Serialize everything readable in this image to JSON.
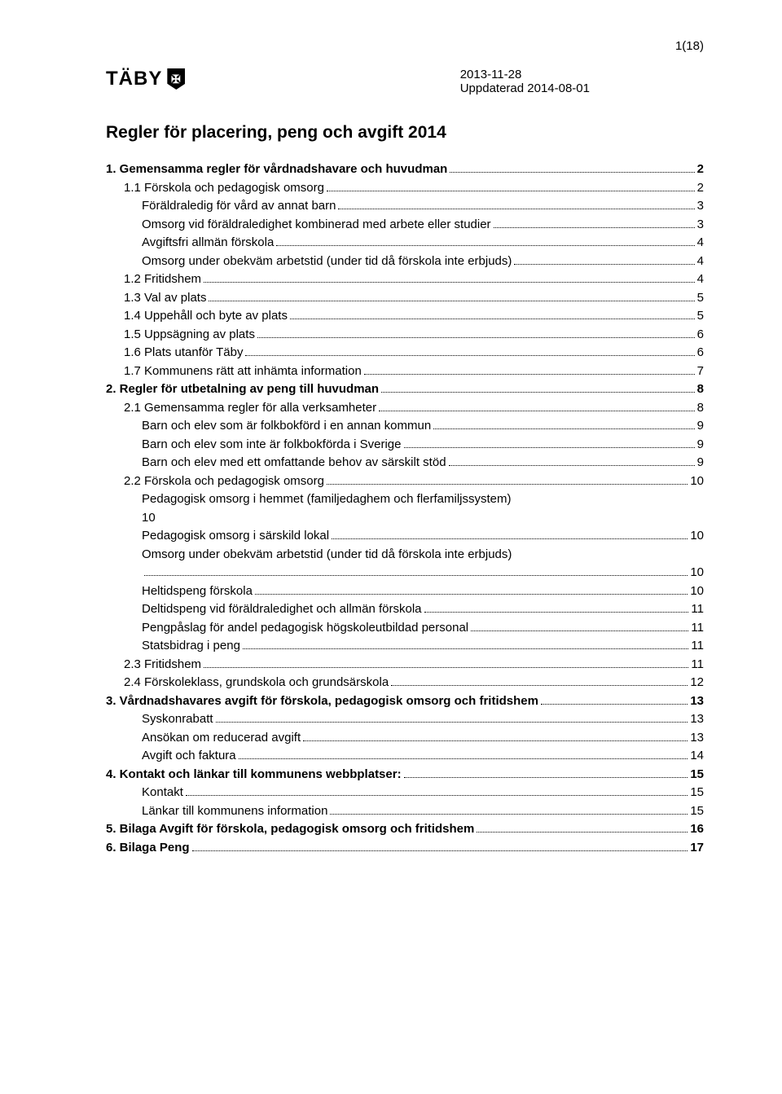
{
  "pageNumber": "1(18)",
  "logoText": "TÄBY",
  "logoGlyph": "✠",
  "date1": "2013-11-28",
  "date2": "Uppdaterad 2014-08-01",
  "title": "Regler för placering, peng och avgift 2014",
  "toc": [
    {
      "level": 0,
      "bold": true,
      "label": "1. Gemensamma regler för vårdnadshavare och huvudman",
      "page": "2"
    },
    {
      "level": 1,
      "bold": false,
      "label": "1.1 Förskola och pedagogisk omsorg",
      "page": "2"
    },
    {
      "level": 2,
      "bold": false,
      "label": "Föräldraledig för vård av annat barn",
      "page": "3"
    },
    {
      "level": 2,
      "bold": false,
      "label": "Omsorg vid föräldraledighet kombinerad med arbete eller studier",
      "page": "3"
    },
    {
      "level": 2,
      "bold": false,
      "label": "Avgiftsfri allmän förskola",
      "page": "4"
    },
    {
      "level": 2,
      "bold": false,
      "label": "Omsorg under obekväm arbetstid (under tid då förskola inte erbjuds)",
      "page": "4"
    },
    {
      "level": 1,
      "bold": false,
      "label": "1.2 Fritidshem",
      "page": "4"
    },
    {
      "level": 1,
      "bold": false,
      "label": "1.3 Val av plats",
      "page": "5"
    },
    {
      "level": 1,
      "bold": false,
      "label": "1.4 Uppehåll och byte av plats",
      "page": "5"
    },
    {
      "level": 1,
      "bold": false,
      "label": "1.5 Uppsägning av plats",
      "page": "6"
    },
    {
      "level": 1,
      "bold": false,
      "label": "1.6 Plats utanför Täby",
      "page": "6"
    },
    {
      "level": 1,
      "bold": false,
      "label": "1.7 Kommunens rätt att inhämta information",
      "page": "7"
    },
    {
      "level": 0,
      "bold": true,
      "label": "2. Regler för utbetalning av peng till huvudman",
      "page": "8"
    },
    {
      "level": 1,
      "bold": false,
      "label": "2.1 Gemensamma regler för alla verksamheter",
      "page": "8"
    },
    {
      "level": 2,
      "bold": false,
      "label": "Barn och elev som är folkbokförd i en annan kommun",
      "page": "9"
    },
    {
      "level": 2,
      "bold": false,
      "label": "Barn och elev som inte är folkbokförda i Sverige",
      "page": "9"
    },
    {
      "level": 2,
      "bold": false,
      "label": "Barn och elev med ett omfattande behov av särskilt stöd",
      "page": "9"
    },
    {
      "level": 1,
      "bold": false,
      "label": "2.2 Förskola och pedagogisk omsorg",
      "page": "10"
    },
    {
      "level": 2,
      "bold": false,
      "label": "Pedagogisk omsorg i hemmet (familjedaghem och flerfamiljssystem)",
      "page": ""
    },
    {
      "level": 2,
      "bold": false,
      "label": "10",
      "page": ""
    },
    {
      "level": 2,
      "bold": false,
      "label": "Pedagogisk omsorg i särskild lokal",
      "page": "10"
    },
    {
      "level": 2,
      "bold": false,
      "label": "Omsorg under obekväm arbetstid (under tid då förskola inte erbjuds)",
      "page": ""
    },
    {
      "level": 2,
      "bold": false,
      "label": "",
      "page": "10"
    },
    {
      "level": 2,
      "bold": false,
      "label": "Heltidspeng förskola",
      "page": "10"
    },
    {
      "level": 2,
      "bold": false,
      "label": "Deltidspeng vid föräldraledighet och allmän förskola",
      "page": "11"
    },
    {
      "level": 2,
      "bold": false,
      "label": "Pengpåslag för andel pedagogisk högskoleutbildad personal",
      "page": "11"
    },
    {
      "level": 2,
      "bold": false,
      "label": "Statsbidrag i peng",
      "page": "11"
    },
    {
      "level": 1,
      "bold": false,
      "label": "2.3 Fritidshem",
      "page": "11"
    },
    {
      "level": 1,
      "bold": false,
      "label": "2.4 Förskoleklass, grundskola och grundsärskola",
      "page": "12"
    },
    {
      "level": 0,
      "bold": true,
      "label": "3. Vårdnadshavares avgift för förskola, pedagogisk omsorg och fritidshem",
      "page": "13"
    },
    {
      "level": 2,
      "bold": false,
      "label": "Syskonrabatt",
      "page": "13"
    },
    {
      "level": 2,
      "bold": false,
      "label": "Ansökan om reducerad avgift",
      "page": "13"
    },
    {
      "level": 2,
      "bold": false,
      "label": "Avgift och faktura",
      "page": "14"
    },
    {
      "level": 0,
      "bold": true,
      "label": "4. Kontakt och länkar till kommunens webbplatser:",
      "page": "15"
    },
    {
      "level": 2,
      "bold": false,
      "label": "Kontakt",
      "page": "15"
    },
    {
      "level": 2,
      "bold": false,
      "label": "Länkar till kommunens information",
      "page": "15"
    },
    {
      "level": 0,
      "bold": true,
      "label": "5. Bilaga Avgift för förskola, pedagogisk omsorg och fritidshem",
      "page": "16"
    },
    {
      "level": 0,
      "bold": true,
      "label": "6. Bilaga Peng",
      "page": "17"
    }
  ],
  "style": {
    "background": "#ffffff",
    "textColor": "#000000",
    "fontFamily": "Arial, Helvetica, sans-serif",
    "titleFontSize": 21,
    "bodyFontSize": 15,
    "pageWidth": 960,
    "pageHeight": 1343
  }
}
